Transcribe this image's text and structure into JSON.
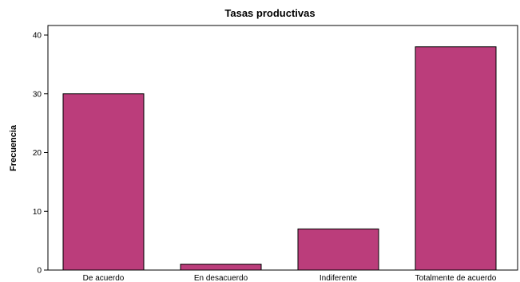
{
  "chart_data": {
    "type": "bar",
    "title": "Tasas productivas",
    "xlabel": "",
    "ylabel": "Frecuencia",
    "categories": [
      "De acuerdo",
      "En desacuerdo",
      "Indiferente",
      "Totalmente de acuerdo"
    ],
    "values": [
      30,
      1,
      7,
      38
    ],
    "ylim": [
      0,
      40
    ],
    "yticks": [
      0,
      10,
      20,
      30,
      40
    ],
    "grid": false,
    "bar_color": "#bb3d7b"
  }
}
